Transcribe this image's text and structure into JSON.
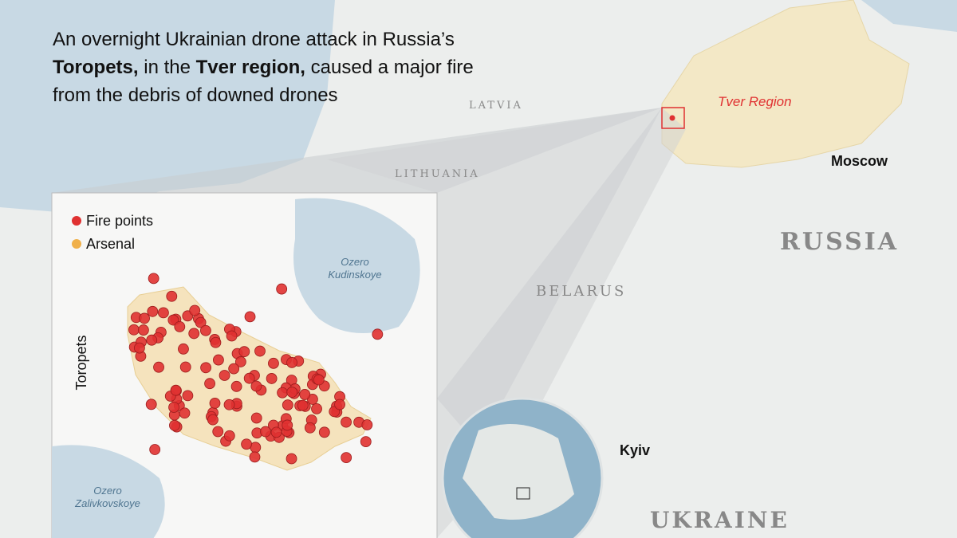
{
  "intro": {
    "lines": [
      [
        {
          "text": "An overnight Ukrainian drone attack in Russia’s",
          "bold": false
        }
      ],
      [
        {
          "text": "Toropets,",
          "bold": true
        },
        {
          "text": " in the ",
          "bold": false
        },
        {
          "text": "Tver region,",
          "bold": true
        },
        {
          "text": " caused a major fire",
          "bold": false
        }
      ],
      [
        {
          "text": "from the debris of downed drones",
          "bold": false
        }
      ]
    ]
  },
  "map_labels": {
    "latvia": "LATVIA",
    "lithuania": "LITHUANIA",
    "belarus": "BELARUS",
    "russia": "RUSSIA",
    "ukraine": "UKRAINE",
    "tver": "Tver Region",
    "moscow": "Moscow",
    "kyiv": "Kyiv"
  },
  "inset": {
    "legend": [
      {
        "label": "Fire points",
        "color": "#e03131"
      },
      {
        "label": "Arsenal",
        "color": "#f0b04a"
      }
    ],
    "town": "Toropets",
    "lakes": [
      {
        "lines": [
          "Ozero",
          "Kudinskoye"
        ]
      },
      {
        "lines": [
          "Ozero",
          "Zalivkovskoye"
        ]
      }
    ]
  }
}
